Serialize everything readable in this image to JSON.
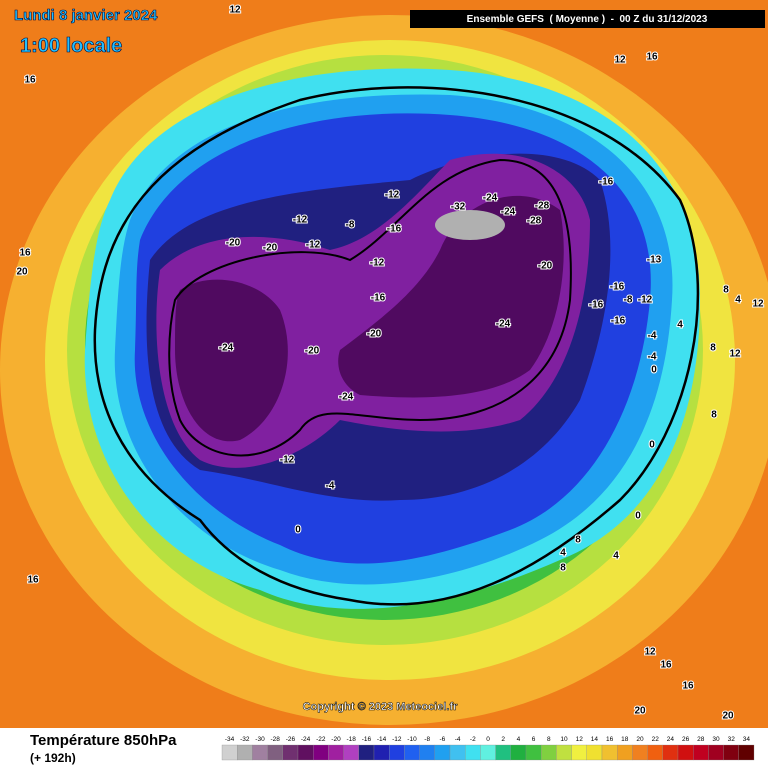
{
  "header": {
    "date": "Lundi 8 janvier 2024",
    "time": "1:00 locale",
    "run": "Ensemble GEFS  ( Moyenne )  -  00 Z du 31/12/2023"
  },
  "map": {
    "labels": [
      12,
      16,
      12,
      16,
      16,
      20,
      -12,
      -16,
      -32,
      -24,
      -24,
      -28,
      -28,
      -12,
      -8,
      -20,
      -20,
      -12,
      -16,
      -12,
      -20,
      -13,
      -16,
      -16,
      -16,
      -8,
      -12,
      8,
      4,
      12,
      -16,
      -24,
      -20,
      -4,
      4,
      -24,
      -20,
      -4,
      0,
      8,
      12,
      -24,
      8,
      0,
      -12,
      -4,
      16,
      0,
      0,
      8,
      4,
      4,
      8,
      12,
      16,
      16,
      20,
      20
    ],
    "copyright": "Copyright © 2023 Meteociel.fr"
  },
  "footer": {
    "title": "Température 850hPa",
    "subtitle": "(+ 192h)"
  },
  "legend": {
    "values": [
      -34,
      -32,
      -30,
      -28,
      -26,
      -24,
      -22,
      -20,
      -18,
      -16,
      -14,
      -12,
      -10,
      -8,
      -6,
      -4,
      -2,
      0,
      2,
      4,
      6,
      8,
      10,
      12,
      14,
      16,
      18,
      20,
      22,
      24,
      26,
      28,
      30,
      32,
      34
    ],
    "colors": [
      "#d0d0d0",
      "#b0b0b0",
      "#a080a0",
      "#806080",
      "#703070",
      "#601060",
      "#800080",
      "#a020a0",
      "#b040c0",
      "#202080",
      "#2020b0",
      "#2040e0",
      "#2060f0",
      "#2080f0",
      "#20a0f0",
      "#40c0f0",
      "#40e0f0",
      "#60f0e0",
      "#20c080",
      "#20b040",
      "#40c040",
      "#80d040",
      "#c0e040",
      "#f0f040",
      "#f0e030",
      "#f0c030",
      "#f0a020",
      "#f08020",
      "#f06010",
      "#e03010",
      "#d01010",
      "#c00020",
      "#a00020",
      "#800010",
      "#600000"
    ]
  }
}
